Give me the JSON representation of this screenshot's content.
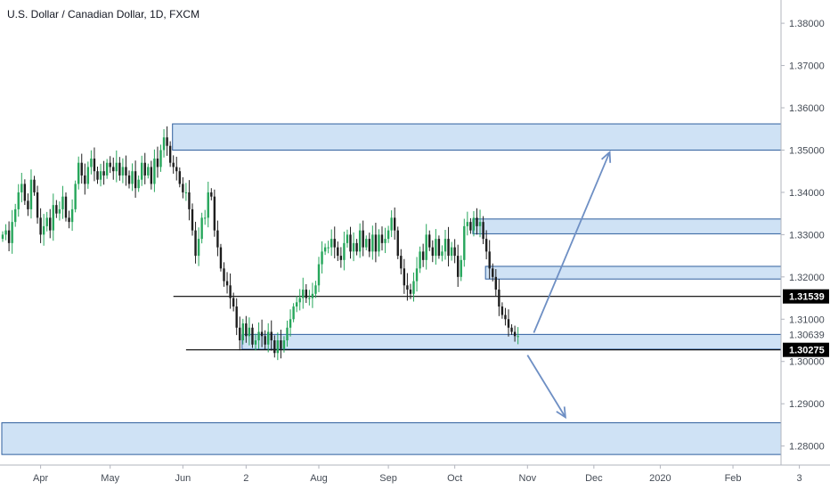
{
  "title": "U.S. Dollar / Canadian Dollar, 1D, FXCM",
  "colors": {
    "up": "#26a65b",
    "down": "#1e1e1e",
    "zone_fill": "#cfe2f5",
    "zone_stroke": "#2f5f9e",
    "arrow": "#6e8fc4",
    "line": "#000000",
    "label_bg": "#000000"
  },
  "chart_data": {
    "type": "candlestick",
    "title": "U.S. Dollar / Canadian Dollar, 1D, FXCM",
    "y_axis": {
      "ylim": [
        1.2755,
        1.3855
      ],
      "ticks": [
        {
          "value": 1.38,
          "label": "1.38000"
        },
        {
          "value": 1.37,
          "label": "1.37000"
        },
        {
          "value": 1.36,
          "label": "1.36000"
        },
        {
          "value": 1.35,
          "label": "1.35000"
        },
        {
          "value": 1.34,
          "label": "1.34000"
        },
        {
          "value": 1.33,
          "label": "1.33000"
        },
        {
          "value": 1.32,
          "label": "1.32000"
        },
        {
          "value": 1.31,
          "label": "1.31000"
        },
        {
          "value": 1.3,
          "label": "1.30000"
        },
        {
          "value": 1.29,
          "label": "1.29000"
        },
        {
          "value": 1.28,
          "label": "1.28000"
        }
      ]
    },
    "x_axis": {
      "ticks": [
        {
          "index": 12,
          "label": "Apr"
        },
        {
          "index": 34,
          "label": "May"
        },
        {
          "index": 57,
          "label": "Jun"
        },
        {
          "index": 77,
          "label": "2"
        },
        {
          "index": 100,
          "label": "Aug"
        },
        {
          "index": 122,
          "label": "Sep"
        },
        {
          "index": 143,
          "label": "Oct"
        },
        {
          "index": 166,
          "label": "Nov"
        },
        {
          "index": 187,
          "label": "Dec"
        },
        {
          "index": 208,
          "label": "2020"
        },
        {
          "index": 231,
          "label": "Feb"
        },
        {
          "index": 252,
          "label": "3"
        }
      ]
    },
    "closes": [
      1.33,
      1.331,
      1.328,
      1.333,
      1.336,
      1.34,
      1.342,
      1.338,
      1.336,
      1.343,
      1.34,
      1.334,
      1.33,
      1.332,
      1.334,
      1.331,
      1.337,
      1.335,
      1.336,
      1.339,
      1.334,
      1.333,
      1.336,
      1.342,
      1.347,
      1.344,
      1.342,
      1.346,
      1.348,
      1.345,
      1.343,
      1.345,
      1.344,
      1.347,
      1.346,
      1.345,
      1.347,
      1.344,
      1.346,
      1.344,
      1.342,
      1.345,
      1.341,
      1.343,
      1.347,
      1.344,
      1.346,
      1.342,
      1.348,
      1.346,
      1.35,
      1.353,
      1.351,
      1.347,
      1.346,
      1.345,
      1.342,
      1.34,
      1.34,
      1.336,
      1.331,
      1.325,
      1.329,
      1.334,
      1.334,
      1.34,
      1.339,
      1.331,
      1.327,
      1.322,
      1.319,
      1.318,
      1.315,
      1.313,
      1.308,
      1.305,
      1.309,
      1.306,
      1.308,
      1.304,
      1.305,
      1.307,
      1.306,
      1.304,
      1.307,
      1.305,
      1.302,
      1.305,
      1.303,
      1.305,
      1.308,
      1.31,
      1.313,
      1.314,
      1.315,
      1.317,
      1.315,
      1.315,
      1.316,
      1.318,
      1.323,
      1.326,
      1.327,
      1.327,
      1.329,
      1.327,
      1.325,
      1.324,
      1.328,
      1.33,
      1.326,
      1.328,
      1.326,
      1.331,
      1.327,
      1.329,
      1.326,
      1.33,
      1.326,
      1.33,
      1.328,
      1.329,
      1.331,
      1.334,
      1.331,
      1.325,
      1.322,
      1.318,
      1.317,
      1.316,
      1.319,
      1.322,
      1.326,
      1.324,
      1.33,
      1.327,
      1.325,
      1.329,
      1.325,
      1.326,
      1.329,
      1.325,
      1.327,
      1.325,
      1.32,
      1.324,
      1.332,
      1.333,
      1.331,
      1.334,
      1.332,
      1.333,
      1.329,
      1.326,
      1.322,
      1.32,
      1.317,
      1.313,
      1.311,
      1.31,
      1.308,
      1.307,
      1.306,
      1.306
    ],
    "zones": [
      {
        "top": 1.3562,
        "bottom": 1.35,
        "x_start_index": 54
      },
      {
        "top": 1.3337,
        "bottom": 1.3302,
        "x_start_index": 149
      },
      {
        "top": 1.3225,
        "bottom": 1.3195,
        "x_start_index": 153
      },
      {
        "top": 1.3064,
        "bottom": 1.3029,
        "x_start_index": 76
      },
      {
        "top": 1.2855,
        "bottom": 1.278,
        "x_start_index": 0
      }
    ],
    "horizontal_lines": [
      {
        "value": 1.31539,
        "x_start_index": 54
      },
      {
        "value": 1.30275,
        "x_start_index": 58
      }
    ],
    "price_labels": [
      {
        "value": 1.31539,
        "text": "1.31539",
        "filled": true
      },
      {
        "value": 1.30639,
        "text": "1.30639",
        "filled": false
      },
      {
        "value": 1.30275,
        "text": "1.30275",
        "filled": true
      }
    ],
    "arrows": [
      {
        "from_index": 168,
        "from_value": 1.3068,
        "to_index": 192,
        "to_value": 1.3495
      },
      {
        "from_index": 166,
        "from_value": 1.3015,
        "to_index": 178,
        "to_value": 1.2868
      }
    ]
  }
}
